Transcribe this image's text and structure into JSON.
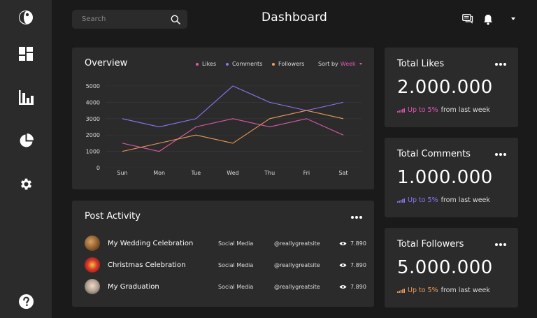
{
  "header": {
    "search_placeholder": "Search",
    "title": "Dashboard"
  },
  "sidebar": {
    "items": [
      {
        "icon": "logo-icon"
      },
      {
        "icon": "grid-icon"
      },
      {
        "icon": "bar-chart-icon"
      },
      {
        "icon": "pie-chart-icon"
      },
      {
        "icon": "gear-icon"
      },
      {
        "icon": "help-icon"
      }
    ]
  },
  "overview": {
    "title": "Overview",
    "legend": [
      {
        "label": "Likes",
        "color": "#e056b5"
      },
      {
        "label": "Comments",
        "color": "#8f76f5"
      },
      {
        "label": "Followers",
        "color": "#f0a060"
      }
    ],
    "sort_label": "Sort by",
    "sort_value": "Week"
  },
  "chart_data": {
    "type": "line",
    "x": [
      "Sun",
      "Mon",
      "Tue",
      "Wed",
      "Thu",
      "Fri",
      "Sat"
    ],
    "yticks": [
      0,
      1000,
      2000,
      3000,
      4000,
      5000
    ],
    "ylim": [
      0,
      5000
    ],
    "series": [
      {
        "name": "Likes",
        "color": "#e05aa8",
        "values": [
          1500,
          1000,
          2500,
          3000,
          2500,
          3000,
          2000
        ]
      },
      {
        "name": "Comments",
        "color": "#8f76f5",
        "values": [
          3000,
          2500,
          3000,
          5000,
          4000,
          3500,
          4000
        ]
      },
      {
        "name": "Followers",
        "color": "#e89a5a",
        "values": [
          1000,
          1500,
          2000,
          1500,
          3000,
          3500,
          3000
        ]
      }
    ]
  },
  "stats": [
    {
      "title": "Total Likes",
      "value": "2.000.000",
      "up": "Up to 5%",
      "rest": "from last week",
      "color": "#e056b5"
    },
    {
      "title": "Total Comments",
      "value": "1.000.000",
      "up": "Up to 5%",
      "rest": "from last week",
      "color": "#8f76f5"
    },
    {
      "title": "Total Followers",
      "value": "5.000.000",
      "up": "Up to 5%",
      "rest": "from last week",
      "color": "#f0a060"
    }
  ],
  "activity": {
    "title": "Post Activity",
    "rows": [
      {
        "title": "My Wedding Celebration",
        "category": "Social Media",
        "handle": "@reallygreatsite",
        "views": "7.890"
      },
      {
        "title": "Christmas Celebration",
        "category": "Social Media",
        "handle": "@reallygreatsite",
        "views": "7.890"
      },
      {
        "title": "My Graduation",
        "category": "Social Media",
        "handle": "@reallygreatsite",
        "views": "7.890"
      }
    ]
  }
}
